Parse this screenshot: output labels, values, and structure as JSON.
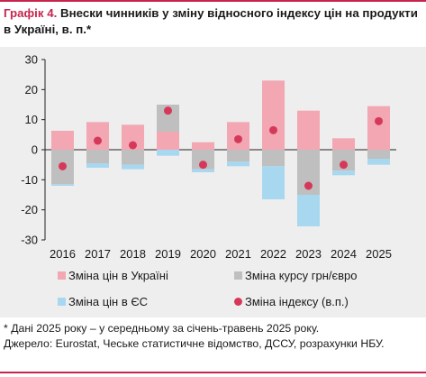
{
  "figure": {
    "label": "Графік 4.",
    "title": "Внески чинників у зміну відносного індексу цін на продукти в Україні, в. п.*"
  },
  "notes": {
    "footnote": "* Дані 2025 року – у середньому за січень-травень 2025 року.",
    "source": "Джерело: Eurostat, Чеське статистичне відомство, ДССУ, розрахунки НБУ."
  },
  "colors": {
    "ukraine_prices": "#f2a7b3",
    "exchange_rate": "#bfbfbf",
    "eu_prices": "#a8d8f0",
    "index_change": "#d6385a",
    "accent": "#c7254e",
    "chart_background": "#eeeeee"
  },
  "chart_data": {
    "type": "bar",
    "stacked": true,
    "title": "",
    "xlabel": "",
    "ylabel": "",
    "ylim": [
      -30,
      30
    ],
    "yticks": [
      30,
      20,
      10,
      0,
      -10,
      -20,
      -30
    ],
    "grid": false,
    "legend_position": "bottom",
    "categories": [
      "2016",
      "2017",
      "2018",
      "2019",
      "2020",
      "2021",
      "2022",
      "2023",
      "2024",
      "2025"
    ],
    "series": [
      {
        "name": "Зміна цін в Україні",
        "kind": "bar",
        "color": "#f2a7b3",
        "values": [
          6.3,
          9.2,
          8.3,
          6.0,
          2.5,
          9.2,
          23.0,
          13.0,
          3.8,
          14.5
        ]
      },
      {
        "name": "Зміна курсу грн/євро",
        "kind": "bar",
        "color": "#bfbfbf",
        "values": [
          -11.5,
          -4.5,
          -5.0,
          9.0,
          -6.5,
          -4.0,
          -5.5,
          -15.0,
          -7.0,
          -3.0
        ]
      },
      {
        "name": "Зміна цін в ЄС",
        "kind": "bar",
        "color": "#a8d8f0",
        "values": [
          -0.5,
          -1.5,
          -1.5,
          -2.0,
          -1.0,
          -1.5,
          -11.0,
          -10.5,
          -1.5,
          -2.0
        ]
      },
      {
        "name": "Зміна індексу (в.п.)",
        "kind": "dot",
        "color": "#d6385a",
        "values": [
          -5.5,
          3.0,
          1.5,
          13.0,
          -5.0,
          3.5,
          6.5,
          -12.0,
          -5.0,
          9.5
        ]
      }
    ]
  }
}
